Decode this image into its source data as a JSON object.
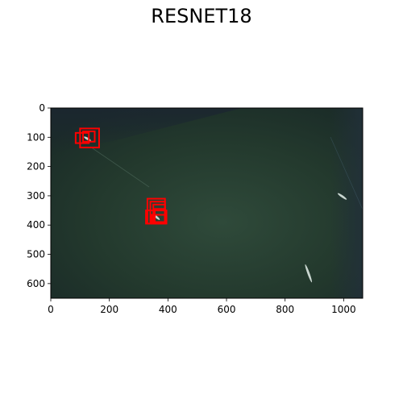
{
  "title": "RESNET18",
  "chart_data": {
    "type": "image",
    "title": "RESNET18",
    "x_ticks": [
      0,
      200,
      400,
      600,
      800,
      1000
    ],
    "y_ticks": [
      0,
      100,
      200,
      300,
      400,
      500,
      600
    ],
    "xlim": [
      0,
      1065
    ],
    "ylim": [
      650,
      0
    ],
    "image": "satellite ocean scene with ships",
    "ships": [
      {
        "x": 125,
        "y": 105,
        "angle": 30,
        "len": 22
      },
      {
        "x": 360,
        "y": 372,
        "angle": 40,
        "len": 26
      },
      {
        "x": 995,
        "y": 302,
        "angle": 35,
        "len": 32
      },
      {
        "x": 880,
        "y": 565,
        "angle": 70,
        "len": 60
      }
    ],
    "detections": [
      {
        "x": 100,
        "y": 70,
        "w": 65,
        "h": 65
      },
      {
        "x": 85,
        "y": 85,
        "w": 45,
        "h": 35
      },
      {
        "x": 110,
        "y": 80,
        "w": 40,
        "h": 35
      },
      {
        "x": 325,
        "y": 350,
        "w": 70,
        "h": 45
      },
      {
        "x": 330,
        "y": 310,
        "w": 60,
        "h": 85
      },
      {
        "x": 340,
        "y": 320,
        "w": 50,
        "h": 70
      },
      {
        "x": 350,
        "y": 330,
        "w": 40,
        "h": 60
      },
      {
        "x": 355,
        "y": 345,
        "w": 35,
        "h": 45
      },
      {
        "x": 345,
        "y": 365,
        "w": 45,
        "h": 30
      }
    ],
    "box_color": "#ff0000"
  }
}
